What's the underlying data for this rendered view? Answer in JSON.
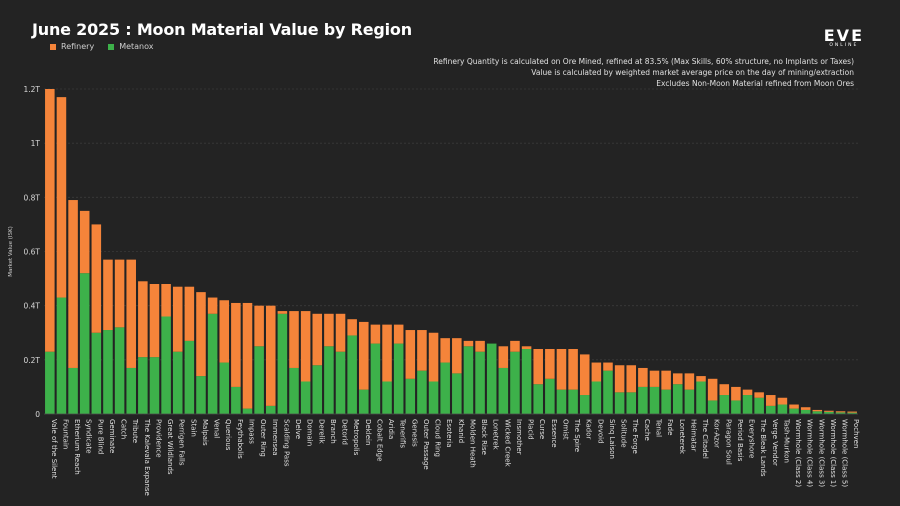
{
  "header": {
    "title": "June 2025 : Moon Material Value by Region",
    "logo": "EVE",
    "logo_sub": "ONLINE",
    "notes": [
      "Refinery Quantity is calculated on Ore Mined, refined at 83.5% (Max Skills, 60% structure, no Implants or Taxes)",
      "Value is calculated by weighted market average price on the day of mining/extraction",
      "Excludes Non-Moon Material refined from Moon Ores"
    ]
  },
  "legend": [
    {
      "label": "Refinery",
      "color": "#f5843a"
    },
    {
      "label": "Metanox",
      "color": "#3db14a"
    }
  ],
  "chart_data": {
    "type": "bar",
    "stacked": true,
    "title": "June 2025 : Moon Material Value by Region",
    "ylabel": "Market Value (ISK)",
    "ylim": [
      0,
      1.2
    ],
    "yticks": [
      0,
      0.2,
      0.4,
      0.6,
      0.8,
      1,
      1.2
    ],
    "ytick_labels": [
      "0",
      "0.2T",
      "0.4T",
      "0.6T",
      "0.8T",
      "1T",
      "1.2T"
    ],
    "grid": true,
    "legend_position": "top-left",
    "categories": [
      "Vale of the Silent",
      "Fountain",
      "Etherium Reach",
      "Syndicate",
      "Pure Blind",
      "Geminate",
      "Catch",
      "Tribute",
      "The Kalevala Expanse",
      "Providence",
      "Great Wildlands",
      "Perrigen Falls",
      "Stain",
      "Malpais",
      "Venal",
      "Querious",
      "Feythabolis",
      "Impass",
      "Outer Ring",
      "Immensea",
      "Scalding Pass",
      "Delve",
      "Domain",
      "Derelik",
      "Branch",
      "Detorid",
      "Metropolis",
      "Deklein",
      "Cobalt Edge",
      "Aridia",
      "Tenerifis",
      "Genesis",
      "Outer Passage",
      "Cloud Ring",
      "Esoteria",
      "Khanid",
      "Molden Heath",
      "Black Rise",
      "Lonetrek",
      "Wicked Creek",
      "Insmother",
      "Placid",
      "Curse",
      "Essence",
      "Omist",
      "The Spire",
      "Kador",
      "Devoid",
      "Sinq Laison",
      "Solitude",
      "The Forge",
      "Cache",
      "Tenal",
      "Fade",
      "Loneterek",
      "Heimatar",
      "The Citadel",
      "Kor-Azor",
      "Paragon Soul",
      "Period Basis",
      "Everyshore",
      "The Bleak Lands",
      "Verge Vendor",
      "Tash-Murkon",
      "Wormhole (Class 2)",
      "Wormhole (Class 4)",
      "Wormhole (Class 3)",
      "Wormhole (Class 1)",
      "Wormhole (Class 5)",
      "Pochven"
    ],
    "series": [
      {
        "name": "Metanox",
        "values": [
          0.23,
          0.43,
          0.17,
          0.52,
          0.3,
          0.31,
          0.32,
          0.17,
          0.21,
          0.21,
          0.36,
          0.23,
          0.27,
          0.14,
          0.37,
          0.19,
          0.1,
          0.02,
          0.25,
          0.03,
          0.37,
          0.17,
          0.12,
          0.18,
          0.25,
          0.23,
          0.29,
          0.09,
          0.26,
          0.12,
          0.26,
          0.13,
          0.16,
          0.12,
          0.19,
          0.15,
          0.25,
          0.23,
          0.26,
          0.17,
          0.23,
          0.24,
          0.11,
          0.13,
          0.09,
          0.09,
          0.07,
          0.12,
          0.16,
          0.08,
          0.08,
          0.1,
          0.1,
          0.09,
          0.11,
          0.09,
          0.12,
          0.05,
          0.07,
          0.05,
          0.07,
          0.06,
          0.03,
          0.035,
          0.02,
          0.015,
          0.01,
          0.008,
          0.006,
          0.005
        ]
      },
      {
        "name": "Refinery",
        "values": [
          0.97,
          0.74,
          0.62,
          0.23,
          0.4,
          0.26,
          0.25,
          0.4,
          0.28,
          0.27,
          0.12,
          0.24,
          0.2,
          0.31,
          0.06,
          0.23,
          0.31,
          0.39,
          0.15,
          0.37,
          0.01,
          0.21,
          0.26,
          0.19,
          0.12,
          0.14,
          0.06,
          0.25,
          0.07,
          0.21,
          0.07,
          0.18,
          0.15,
          0.18,
          0.09,
          0.13,
          0.02,
          0.04,
          0.0,
          0.08,
          0.04,
          0.01,
          0.13,
          0.11,
          0.15,
          0.15,
          0.15,
          0.07,
          0.03,
          0.1,
          0.1,
          0.07,
          0.06,
          0.07,
          0.04,
          0.06,
          0.02,
          0.08,
          0.04,
          0.05,
          0.02,
          0.02,
          0.04,
          0.025,
          0.015,
          0.01,
          0.005,
          0.004,
          0.004,
          0.004
        ]
      }
    ]
  }
}
